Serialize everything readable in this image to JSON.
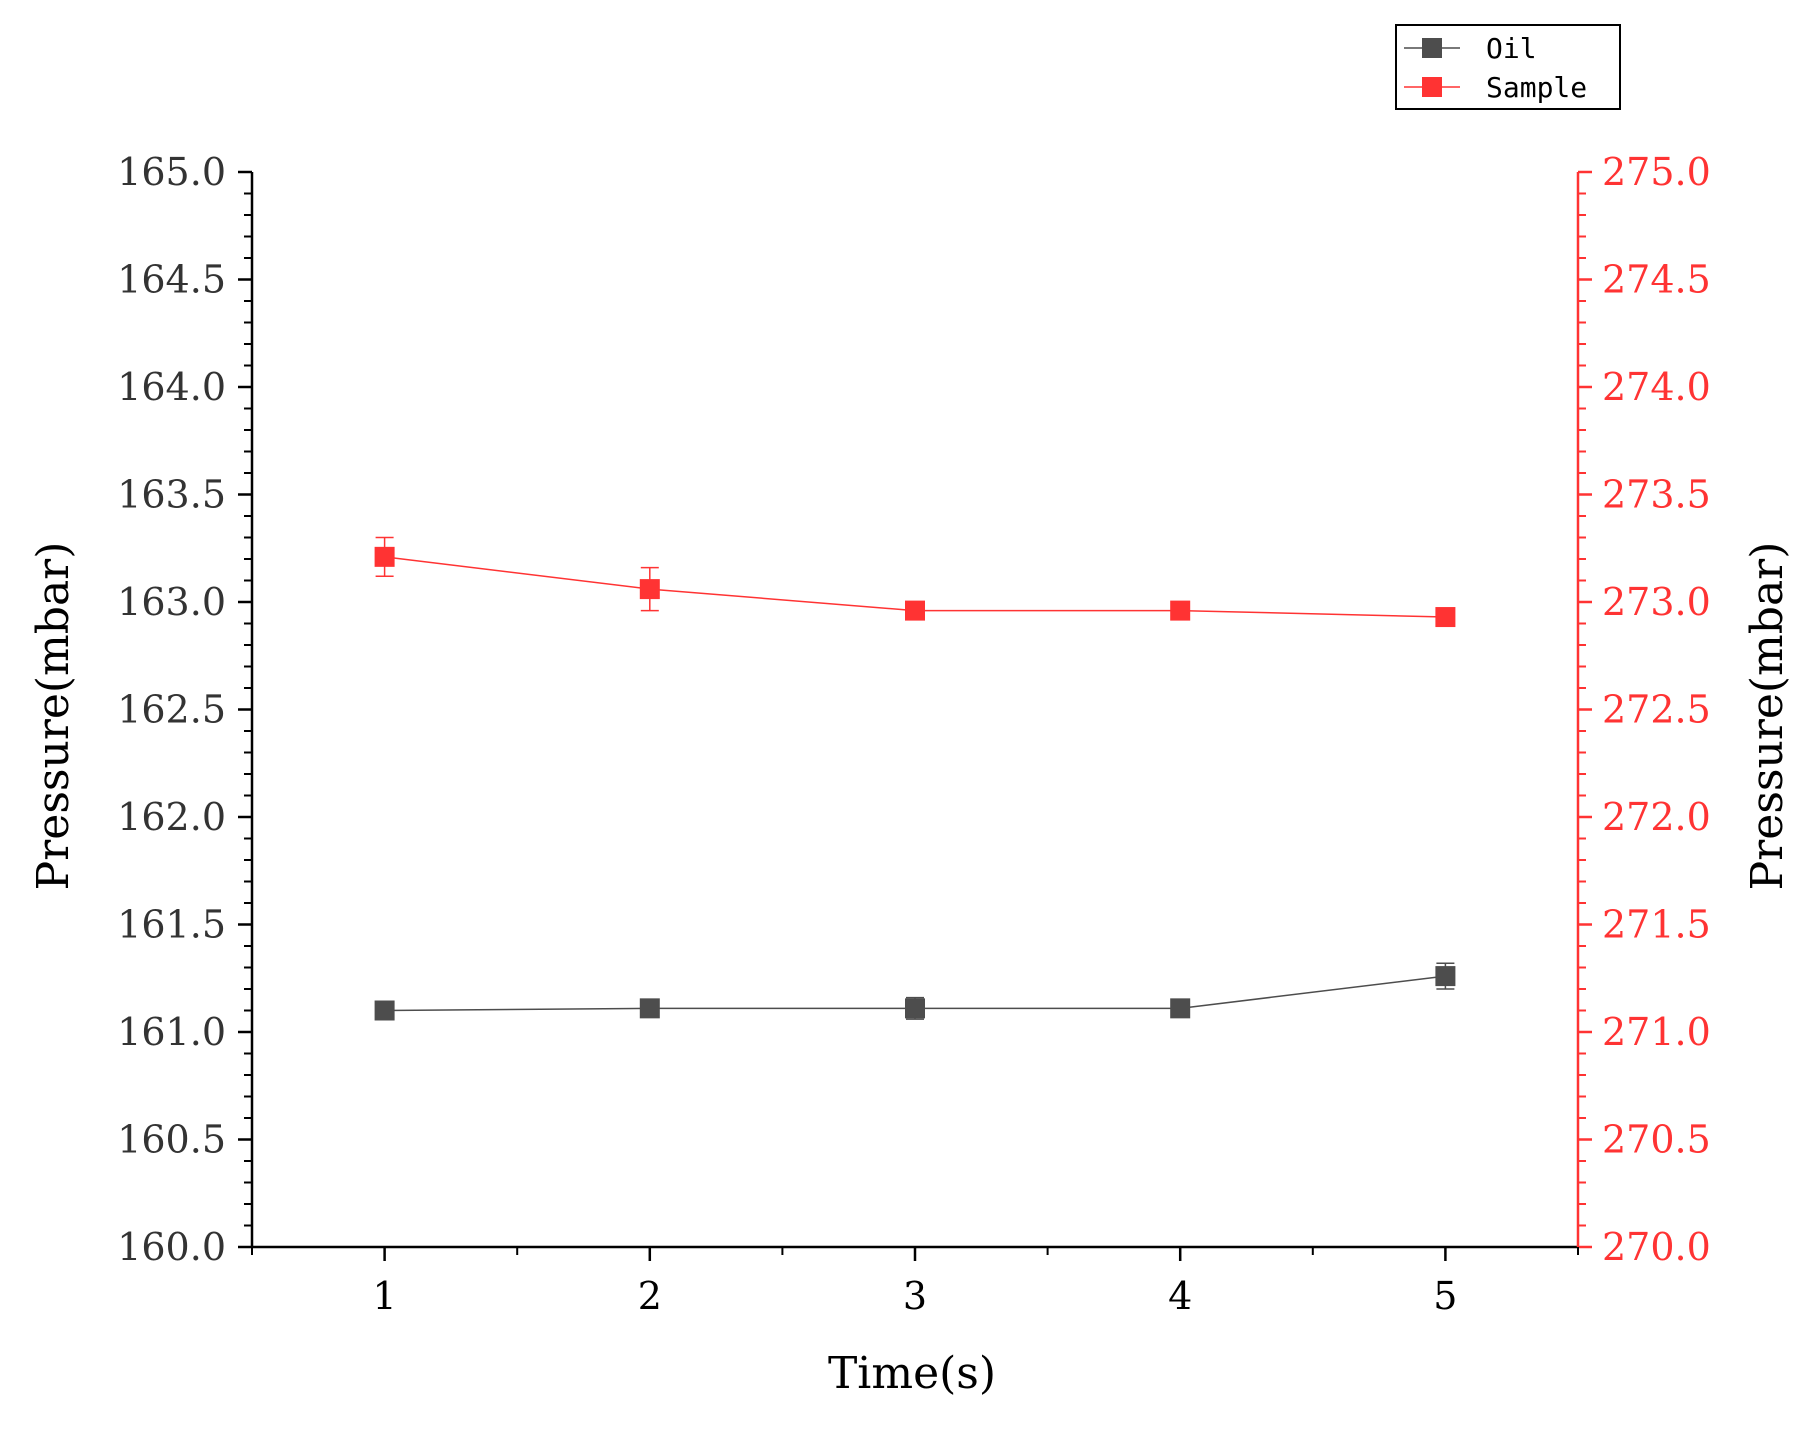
{
  "chart_data": {
    "type": "line",
    "x": [
      1,
      2,
      3,
      4,
      5
    ],
    "x_ticks": [
      "1",
      "2",
      "3",
      "4",
      "5"
    ],
    "xlabel": "Time(s)",
    "xlim": [
      0.5,
      5.5
    ],
    "y_left": {
      "label": "Pressure(mbar)",
      "ylim": [
        160.0,
        165.0
      ],
      "ticks": [
        "160.0",
        "160.5",
        "161.0",
        "161.5",
        "162.0",
        "162.5",
        "163.0",
        "163.5",
        "164.0",
        "164.5",
        "165.0"
      ],
      "color": "#333333"
    },
    "y_right": {
      "label": "Pressure(mbar)",
      "ylim": [
        270.0,
        275.0
      ],
      "ticks": [
        "270.0",
        "270.5",
        "271.0",
        "271.5",
        "272.0",
        "272.5",
        "273.0",
        "273.5",
        "274.0",
        "274.5",
        "275.0"
      ],
      "color": "#ff3333"
    },
    "series": [
      {
        "name": "Oil",
        "axis": "left",
        "color": "#4d4d4d",
        "values": [
          161.1,
          161.11,
          161.11,
          161.11,
          161.26
        ],
        "errors": [
          0.01,
          0.02,
          0.05,
          0.04,
          0.06
        ]
      },
      {
        "name": "Sample",
        "axis": "right",
        "color": "#ff3333",
        "values": [
          273.21,
          273.06,
          272.96,
          272.96,
          272.93
        ],
        "errors": [
          0.09,
          0.1,
          0.02,
          0.02,
          0.03
        ]
      }
    ],
    "legend_position": "top-right",
    "grid": false
  }
}
